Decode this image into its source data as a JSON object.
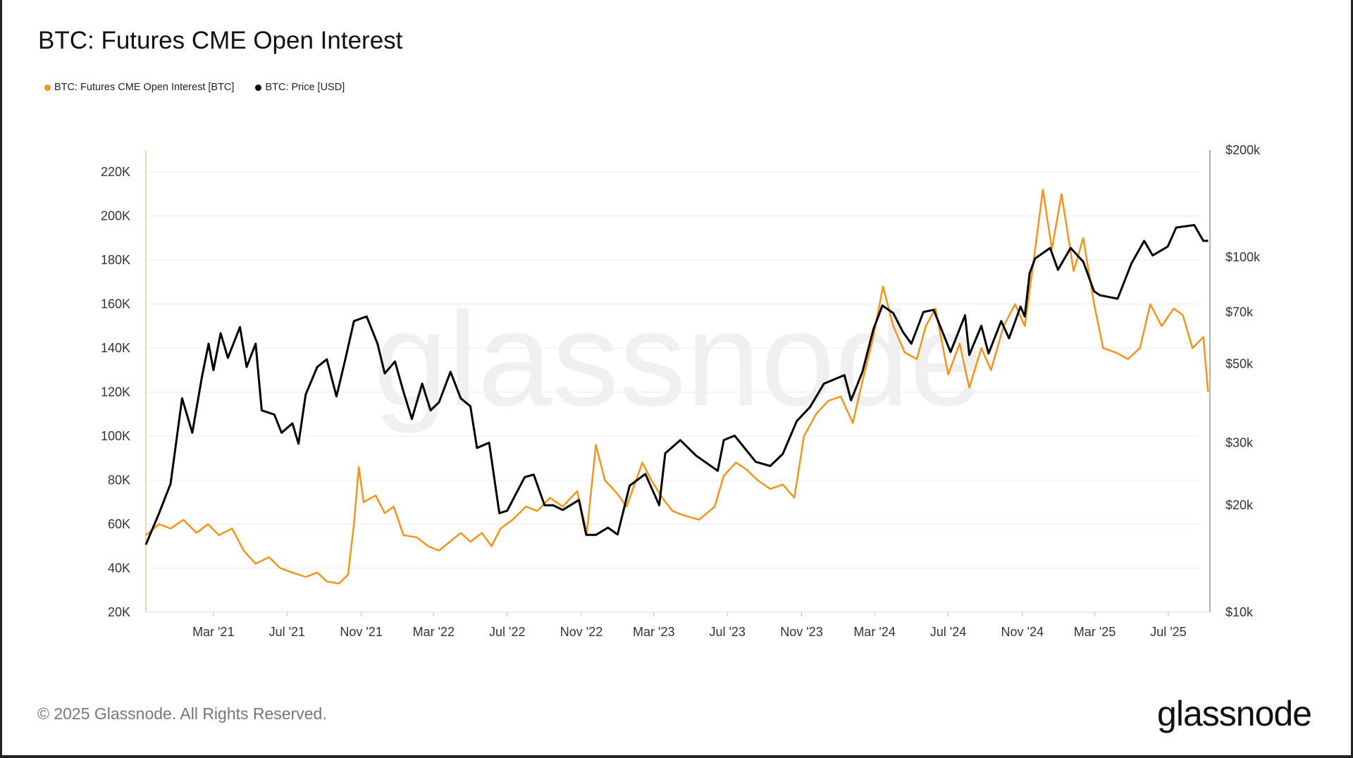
{
  "title": "BTC: Futures CME Open Interest",
  "footer": "© 2025 Glassnode. All Rights Reserved.",
  "logo": "glassnode",
  "watermark": "glassnode",
  "chart_data": {
    "type": "line",
    "title": "BTC: Futures CME Open Interest",
    "x_range": [
      "2020-11-09",
      "2025-09-08"
    ],
    "x_ticks": [
      {
        "date": "2021-03-01",
        "label": "Mar '21"
      },
      {
        "date": "2021-07-01",
        "label": "Jul '21"
      },
      {
        "date": "2021-11-01",
        "label": "Nov '21"
      },
      {
        "date": "2022-03-01",
        "label": "Mar '22"
      },
      {
        "date": "2022-07-01",
        "label": "Jul '22"
      },
      {
        "date": "2022-11-01",
        "label": "Nov '22"
      },
      {
        "date": "2023-03-01",
        "label": "Mar '23"
      },
      {
        "date": "2023-07-01",
        "label": "Jul '23"
      },
      {
        "date": "2023-11-01",
        "label": "Nov '23"
      },
      {
        "date": "2024-03-01",
        "label": "Mar '24"
      },
      {
        "date": "2024-07-01",
        "label": "Jul '24"
      },
      {
        "date": "2024-11-01",
        "label": "Nov '24"
      },
      {
        "date": "2025-03-01",
        "label": "Mar '25"
      },
      {
        "date": "2025-07-01",
        "label": "Jul '25"
      }
    ],
    "y_left": {
      "range": [
        20000,
        230000
      ],
      "scale": "linear",
      "ticks": [
        20000,
        40000,
        60000,
        80000,
        100000,
        120000,
        140000,
        160000,
        180000,
        200000,
        220000
      ],
      "tick_labels": [
        "20K",
        "40K",
        "60K",
        "80K",
        "100K",
        "120K",
        "140K",
        "160K",
        "180K",
        "200K",
        "220K"
      ]
    },
    "y_right": {
      "range": [
        10000,
        200000
      ],
      "scale": "log",
      "ticks": [
        10000,
        20000,
        30000,
        50000,
        70000,
        100000,
        200000
      ],
      "tick_labels": [
        "$10k",
        "$20k",
        "$30k",
        "$50k",
        "$70k",
        "$100k",
        "$200k"
      ]
    },
    "grid": true,
    "legend_placement": "top-left",
    "series": [
      {
        "name": "BTC: Futures CME Open Interest [BTC]",
        "axis": "left",
        "color": "#f7931a",
        "points": [
          [
            "2020-11-09",
            55000
          ],
          [
            "2020-12-01",
            60000
          ],
          [
            "2020-12-20",
            58000
          ],
          [
            "2021-01-10",
            62000
          ],
          [
            "2021-02-01",
            56000
          ],
          [
            "2021-02-20",
            60000
          ],
          [
            "2021-03-10",
            55000
          ],
          [
            "2021-04-01",
            58000
          ],
          [
            "2021-04-20",
            48000
          ],
          [
            "2021-05-10",
            42000
          ],
          [
            "2021-06-01",
            45000
          ],
          [
            "2021-06-20",
            40000
          ],
          [
            "2021-07-10",
            38000
          ],
          [
            "2021-08-01",
            36000
          ],
          [
            "2021-08-20",
            38000
          ],
          [
            "2021-09-05",
            34000
          ],
          [
            "2021-09-25",
            33000
          ],
          [
            "2021-10-10",
            37000
          ],
          [
            "2021-10-20",
            60000
          ],
          [
            "2021-10-28",
            86000
          ],
          [
            "2021-11-05",
            70000
          ],
          [
            "2021-11-25",
            73000
          ],
          [
            "2021-12-10",
            65000
          ],
          [
            "2021-12-25",
            68000
          ],
          [
            "2022-01-10",
            55000
          ],
          [
            "2022-02-01",
            54000
          ],
          [
            "2022-02-20",
            50000
          ],
          [
            "2022-03-10",
            48000
          ],
          [
            "2022-03-28",
            52000
          ],
          [
            "2022-04-15",
            56000
          ],
          [
            "2022-05-01",
            52000
          ],
          [
            "2022-05-20",
            56000
          ],
          [
            "2022-06-05",
            50000
          ],
          [
            "2022-06-20",
            58000
          ],
          [
            "2022-07-10",
            62000
          ],
          [
            "2022-08-01",
            68000
          ],
          [
            "2022-08-20",
            66000
          ],
          [
            "2022-09-10",
            72000
          ],
          [
            "2022-10-01",
            68000
          ],
          [
            "2022-10-25",
            75000
          ],
          [
            "2022-11-10",
            56000
          ],
          [
            "2022-11-25",
            96000
          ],
          [
            "2022-12-10",
            80000
          ],
          [
            "2022-12-30",
            74000
          ],
          [
            "2023-01-15",
            68000
          ],
          [
            "2023-02-10",
            88000
          ],
          [
            "2023-02-25",
            80000
          ],
          [
            "2023-03-15",
            72000
          ],
          [
            "2023-04-01",
            66000
          ],
          [
            "2023-04-20",
            64000
          ],
          [
            "2023-05-15",
            62000
          ],
          [
            "2023-06-10",
            68000
          ],
          [
            "2023-06-25",
            82000
          ],
          [
            "2023-07-15",
            88000
          ],
          [
            "2023-08-01",
            85000
          ],
          [
            "2023-08-20",
            80000
          ],
          [
            "2023-09-10",
            76000
          ],
          [
            "2023-10-01",
            78000
          ],
          [
            "2023-10-20",
            72000
          ],
          [
            "2023-11-05",
            100000
          ],
          [
            "2023-11-25",
            110000
          ],
          [
            "2023-12-15",
            116000
          ],
          [
            "2024-01-05",
            118000
          ],
          [
            "2024-01-25",
            106000
          ],
          [
            "2024-02-10",
            125000
          ],
          [
            "2024-02-28",
            145000
          ],
          [
            "2024-03-15",
            168000
          ],
          [
            "2024-04-01",
            150000
          ],
          [
            "2024-04-20",
            138000
          ],
          [
            "2024-05-10",
            135000
          ],
          [
            "2024-05-25",
            150000
          ],
          [
            "2024-06-10",
            158000
          ],
          [
            "2024-07-01",
            128000
          ],
          [
            "2024-07-20",
            142000
          ],
          [
            "2024-08-05",
            122000
          ],
          [
            "2024-08-25",
            140000
          ],
          [
            "2024-09-10",
            130000
          ],
          [
            "2024-10-01",
            150000
          ],
          [
            "2024-10-20",
            160000
          ],
          [
            "2024-11-05",
            150000
          ],
          [
            "2024-11-20",
            180000
          ],
          [
            "2024-12-05",
            212000
          ],
          [
            "2024-12-20",
            185000
          ],
          [
            "2025-01-05",
            210000
          ],
          [
            "2025-01-25",
            175000
          ],
          [
            "2025-02-10",
            190000
          ],
          [
            "2025-02-28",
            160000
          ],
          [
            "2025-03-15",
            140000
          ],
          [
            "2025-04-05",
            138000
          ],
          [
            "2025-04-25",
            135000
          ],
          [
            "2025-05-15",
            140000
          ],
          [
            "2025-06-01",
            160000
          ],
          [
            "2025-06-20",
            150000
          ],
          [
            "2025-07-10",
            158000
          ],
          [
            "2025-07-25",
            155000
          ],
          [
            "2025-08-10",
            140000
          ],
          [
            "2025-08-28",
            145000
          ],
          [
            "2025-09-05",
            120000
          ]
        ]
      },
      {
        "name": "BTC: Price [USD]",
        "axis": "right",
        "color": "#000000",
        "points": [
          [
            "2020-11-09",
            15500
          ],
          [
            "2020-12-01",
            19000
          ],
          [
            "2020-12-20",
            23000
          ],
          [
            "2021-01-08",
            40000
          ],
          [
            "2021-01-25",
            32000
          ],
          [
            "2021-02-10",
            46000
          ],
          [
            "2021-02-21",
            57000
          ],
          [
            "2021-03-01",
            48000
          ],
          [
            "2021-03-13",
            61000
          ],
          [
            "2021-03-25",
            52000
          ],
          [
            "2021-04-14",
            63500
          ],
          [
            "2021-04-25",
            49000
          ],
          [
            "2021-05-10",
            57000
          ],
          [
            "2021-05-20",
            37000
          ],
          [
            "2021-06-10",
            36000
          ],
          [
            "2021-06-22",
            32000
          ],
          [
            "2021-07-10",
            34000
          ],
          [
            "2021-07-20",
            29800
          ],
          [
            "2021-08-01",
            41000
          ],
          [
            "2021-08-20",
            49000
          ],
          [
            "2021-09-05",
            51500
          ],
          [
            "2021-09-21",
            40500
          ],
          [
            "2021-10-05",
            51000
          ],
          [
            "2021-10-20",
            66000
          ],
          [
            "2021-11-10",
            68000
          ],
          [
            "2021-11-28",
            57000
          ],
          [
            "2021-12-10",
            47000
          ],
          [
            "2021-12-27",
            50800
          ],
          [
            "2022-01-10",
            41800
          ],
          [
            "2022-01-24",
            35000
          ],
          [
            "2022-02-10",
            44000
          ],
          [
            "2022-02-24",
            37000
          ],
          [
            "2022-03-10",
            39000
          ],
          [
            "2022-03-29",
            47500
          ],
          [
            "2022-04-15",
            40000
          ],
          [
            "2022-05-01",
            38000
          ],
          [
            "2022-05-12",
            29000
          ],
          [
            "2022-06-01",
            30000
          ],
          [
            "2022-06-18",
            19000
          ],
          [
            "2022-07-01",
            19300
          ],
          [
            "2022-07-30",
            24000
          ],
          [
            "2022-08-14",
            24400
          ],
          [
            "2022-09-01",
            20000
          ],
          [
            "2022-09-15",
            20000
          ],
          [
            "2022-10-01",
            19400
          ],
          [
            "2022-10-28",
            20700
          ],
          [
            "2022-11-09",
            16500
          ],
          [
            "2022-11-25",
            16500
          ],
          [
            "2022-12-15",
            17300
          ],
          [
            "2022-12-31",
            16550
          ],
          [
            "2023-01-20",
            22700
          ],
          [
            "2023-02-15",
            24500
          ],
          [
            "2023-03-10",
            20000
          ],
          [
            "2023-03-20",
            28000
          ],
          [
            "2023-04-14",
            30500
          ],
          [
            "2023-05-10",
            27600
          ],
          [
            "2023-06-15",
            25000
          ],
          [
            "2023-06-25",
            30500
          ],
          [
            "2023-07-13",
            31400
          ],
          [
            "2023-08-17",
            26500
          ],
          [
            "2023-09-10",
            25800
          ],
          [
            "2023-10-01",
            27900
          ],
          [
            "2023-10-24",
            34500
          ],
          [
            "2023-11-15",
            37800
          ],
          [
            "2023-12-08",
            44000
          ],
          [
            "2024-01-11",
            46500
          ],
          [
            "2024-01-22",
            39500
          ],
          [
            "2024-02-10",
            47500
          ],
          [
            "2024-02-28",
            62500
          ],
          [
            "2024-03-14",
            73000
          ],
          [
            "2024-04-01",
            69500
          ],
          [
            "2024-04-17",
            61500
          ],
          [
            "2024-05-01",
            57000
          ],
          [
            "2024-05-21",
            70000
          ],
          [
            "2024-06-07",
            71000
          ],
          [
            "2024-07-05",
            54000
          ],
          [
            "2024-07-29",
            68500
          ],
          [
            "2024-08-05",
            53000
          ],
          [
            "2024-08-25",
            64000
          ],
          [
            "2024-09-06",
            53500
          ],
          [
            "2024-09-27",
            66000
          ],
          [
            "2024-10-10",
            59000
          ],
          [
            "2024-10-29",
            72500
          ],
          [
            "2024-11-05",
            68000
          ],
          [
            "2024-11-13",
            90000
          ],
          [
            "2024-11-22",
            99000
          ],
          [
            "2024-12-17",
            106000
          ],
          [
            "2024-12-30",
            92000
          ],
          [
            "2025-01-20",
            106000
          ],
          [
            "2025-02-10",
            97000
          ],
          [
            "2025-02-28",
            80000
          ],
          [
            "2025-03-10",
            78000
          ],
          [
            "2025-04-08",
            76300
          ],
          [
            "2025-05-01",
            96000
          ],
          [
            "2025-05-22",
            111000
          ],
          [
            "2025-06-05",
            101000
          ],
          [
            "2025-06-30",
            107000
          ],
          [
            "2025-07-14",
            121000
          ],
          [
            "2025-08-13",
            123000
          ],
          [
            "2025-08-28",
            111000
          ],
          [
            "2025-09-05",
            111000
          ]
        ]
      }
    ]
  }
}
